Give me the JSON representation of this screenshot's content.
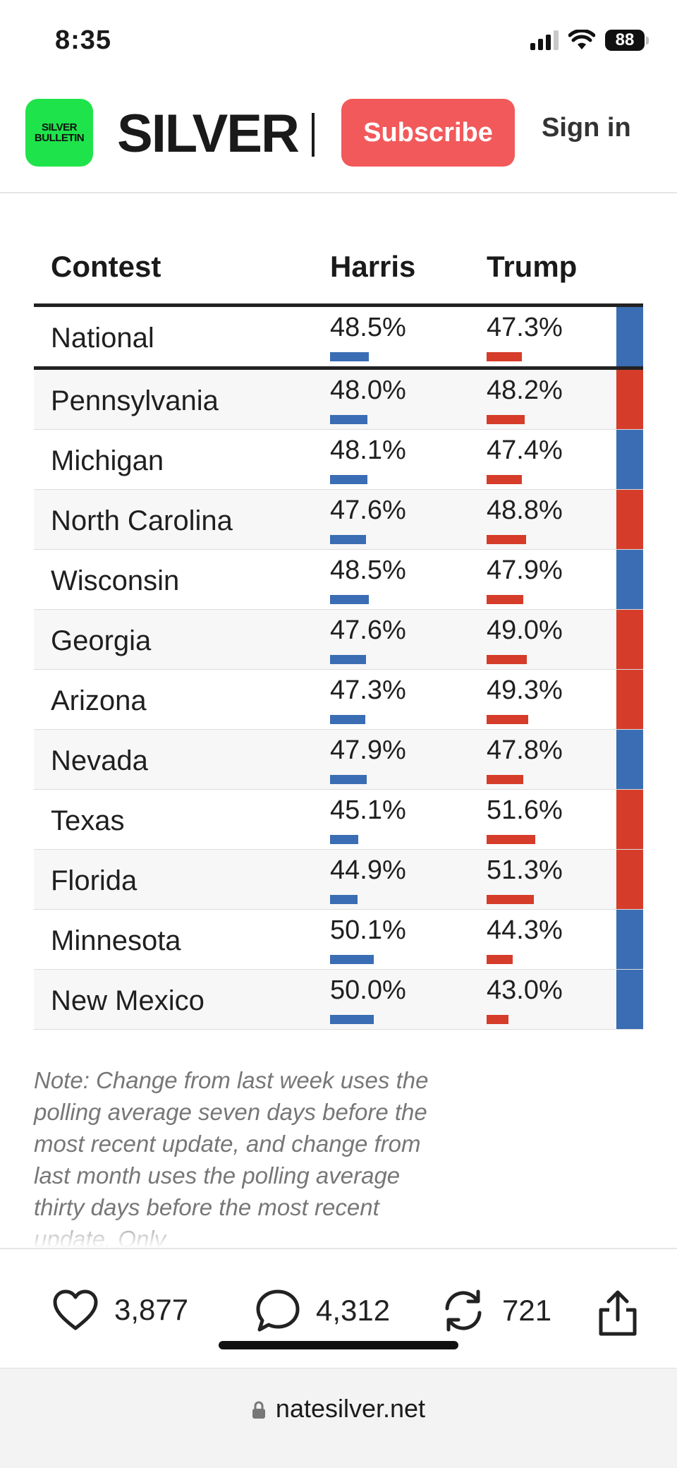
{
  "status_bar": {
    "time": "8:35",
    "battery": "88"
  },
  "header": {
    "logo_lines": [
      "SILVER",
      "BULLETIN"
    ],
    "brand": "SILVER",
    "subscribe_label": "Subscribe",
    "signin_label": "Sign in"
  },
  "table": {
    "headers": {
      "contest": "Contest",
      "harris": "Harris",
      "trump": "Trump"
    },
    "colors": {
      "harris": "#3a6db3",
      "trump": "#d63c2a"
    },
    "rows": [
      {
        "name": "National",
        "harris": "48.5%",
        "trump": "47.3%",
        "harris_value": 48.5,
        "trump_value": 47.3,
        "lean": "harris"
      },
      {
        "name": "Pennsylvania",
        "harris": "48.0%",
        "trump": "48.2%",
        "harris_value": 48.0,
        "trump_value": 48.2,
        "lean": "trump"
      },
      {
        "name": "Michigan",
        "harris": "48.1%",
        "trump": "47.4%",
        "harris_value": 48.1,
        "trump_value": 47.4,
        "lean": "harris"
      },
      {
        "name": "North Carolina",
        "harris": "47.6%",
        "trump": "48.8%",
        "harris_value": 47.6,
        "trump_value": 48.8,
        "lean": "trump"
      },
      {
        "name": "Wisconsin",
        "harris": "48.5%",
        "trump": "47.9%",
        "harris_value": 48.5,
        "trump_value": 47.9,
        "lean": "harris"
      },
      {
        "name": "Georgia",
        "harris": "47.6%",
        "trump": "49.0%",
        "harris_value": 47.6,
        "trump_value": 49.0,
        "lean": "trump"
      },
      {
        "name": "Arizona",
        "harris": "47.3%",
        "trump": "49.3%",
        "harris_value": 47.3,
        "trump_value": 49.3,
        "lean": "trump"
      },
      {
        "name": "Nevada",
        "harris": "47.9%",
        "trump": "47.8%",
        "harris_value": 47.9,
        "trump_value": 47.8,
        "lean": "harris"
      },
      {
        "name": "Texas",
        "harris": "45.1%",
        "trump": "51.6%",
        "harris_value": 45.1,
        "trump_value": 51.6,
        "lean": "trump"
      },
      {
        "name": "Florida",
        "harris": "44.9%",
        "trump": "51.3%",
        "harris_value": 44.9,
        "trump_value": 51.3,
        "lean": "trump"
      },
      {
        "name": "Minnesota",
        "harris": "50.1%",
        "trump": "44.3%",
        "harris_value": 50.1,
        "trump_value": 44.3,
        "lean": "harris"
      },
      {
        "name": "New Mexico",
        "harris": "50.0%",
        "trump": "43.0%",
        "harris_value": 50.0,
        "trump_value": 43.0,
        "lean": "harris"
      }
    ]
  },
  "note": "Note: Change from last week uses the polling average seven days before the most recent update, and change from last month uses the polling average thirty days before the most recent update. Only",
  "actions": {
    "likes": "3,877",
    "comments": "4,312",
    "restacks": "721"
  },
  "url_bar": {
    "domain": "natesilver.net"
  }
}
